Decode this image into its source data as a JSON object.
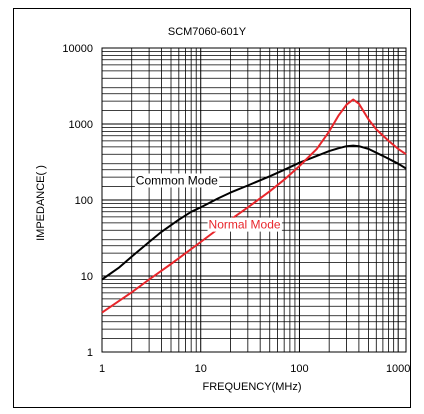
{
  "chart_data": {
    "type": "line",
    "title": "SCM7060-601Y",
    "xlabel": "FREQUENCY(MHz)",
    "ylabel": "IMPEDANCE(   )",
    "x_scale": "log",
    "y_scale": "log",
    "xlim": [
      1,
      1200
    ],
    "ylim": [
      1,
      10000
    ],
    "x_ticks": [
      1,
      10,
      100,
      1000
    ],
    "x_tick_labels": [
      "1",
      "10",
      "100",
      "1000"
    ],
    "y_ticks": [
      1,
      10,
      100,
      1000,
      10000
    ],
    "y_tick_labels": [
      "1",
      "10",
      "100",
      "1000",
      "10000"
    ],
    "grid": true,
    "series": [
      {
        "name": "Common Mode",
        "color": "#000000",
        "x": [
          1,
          1.5,
          2,
          3,
          4,
          6,
          8,
          10,
          15,
          20,
          30,
          50,
          70,
          100,
          150,
          200,
          250,
          300,
          350,
          400,
          500,
          700,
          1000,
          1200
        ],
        "y": [
          9,
          13,
          18,
          28,
          38,
          55,
          70,
          80,
          105,
          125,
          155,
          205,
          250,
          310,
          380,
          440,
          480,
          510,
          520,
          510,
          470,
          380,
          300,
          260
        ]
      },
      {
        "name": "Normal Mode",
        "color": "#e8262b",
        "x": [
          1,
          2,
          3,
          5,
          10,
          20,
          30,
          50,
          70,
          100,
          150,
          200,
          250,
          300,
          350,
          400,
          500,
          600,
          800,
          1000,
          1200
        ],
        "y": [
          3.3,
          6.1,
          9,
          14.4,
          28,
          55,
          80,
          130,
          185,
          280,
          470,
          800,
          1300,
          1800,
          2100,
          1850,
          1150,
          850,
          600,
          470,
          400
        ]
      }
    ],
    "annotations": [
      {
        "text": "Common Mode",
        "x": 2.2,
        "y": 160,
        "color": "#000000"
      },
      {
        "text": "Normal Mode",
        "x": 12,
        "y": 42,
        "color": "#e8262b"
      }
    ]
  }
}
